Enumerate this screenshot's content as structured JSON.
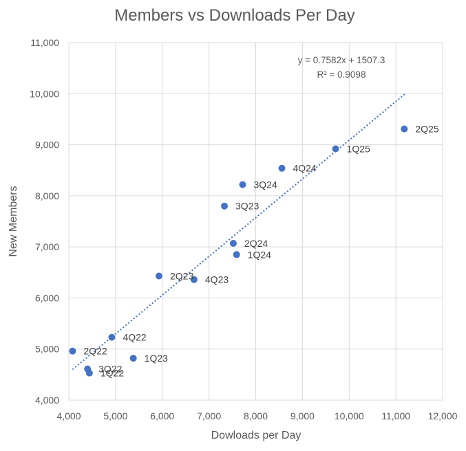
{
  "chart_data": {
    "type": "scatter",
    "title": "Members vs Downloads Per Day",
    "xlabel": "Dowloads per Day",
    "ylabel": "New Members",
    "xlim": [
      4000,
      12000
    ],
    "ylim": [
      4000,
      11000
    ],
    "x_ticks": [
      4000,
      5000,
      6000,
      7000,
      8000,
      9000,
      10000,
      11000,
      12000
    ],
    "y_ticks": [
      4000,
      5000,
      6000,
      7000,
      8000,
      9000,
      10000,
      11000
    ],
    "x_tick_labels": [
      "4,000",
      "5,000",
      "6,000",
      "7,000",
      "8,000",
      "9,000",
      "10,000",
      "11,000",
      "12,000"
    ],
    "y_tick_labels": [
      "4,000",
      "5,000",
      "6,000",
      "7,000",
      "8,000",
      "9,000",
      "10,000",
      "11,000"
    ],
    "grid": true,
    "point_color": "#4472c4",
    "points": [
      {
        "label": "2Q22",
        "x": 4080,
        "y": 4960
      },
      {
        "label": "3Q22",
        "x": 4400,
        "y": 4610
      },
      {
        "label": "1Q22",
        "x": 4440,
        "y": 4530
      },
      {
        "label": "4Q22",
        "x": 4920,
        "y": 5230
      },
      {
        "label": "1Q23",
        "x": 5380,
        "y": 4820
      },
      {
        "label": "2Q23",
        "x": 5930,
        "y": 6430
      },
      {
        "label": "4Q23",
        "x": 6680,
        "y": 6360
      },
      {
        "label": "3Q23",
        "x": 7330,
        "y": 7800
      },
      {
        "label": "2Q24",
        "x": 7520,
        "y": 7070
      },
      {
        "label": "1Q24",
        "x": 7590,
        "y": 6850
      },
      {
        "label": "3Q24",
        "x": 7720,
        "y": 8220
      },
      {
        "label": "4Q24",
        "x": 8560,
        "y": 8540
      },
      {
        "label": "1Q25",
        "x": 9710,
        "y": 8920
      },
      {
        "label": "2Q25",
        "x": 11180,
        "y": 9310
      }
    ],
    "trendline": {
      "type": "linear",
      "slope": 0.7582,
      "intercept": 1507.3,
      "x_range": [
        4080,
        11200
      ],
      "equation_text": "y = 0.7582x + 1507.3",
      "r2_text": "R² = 0.9098"
    }
  }
}
